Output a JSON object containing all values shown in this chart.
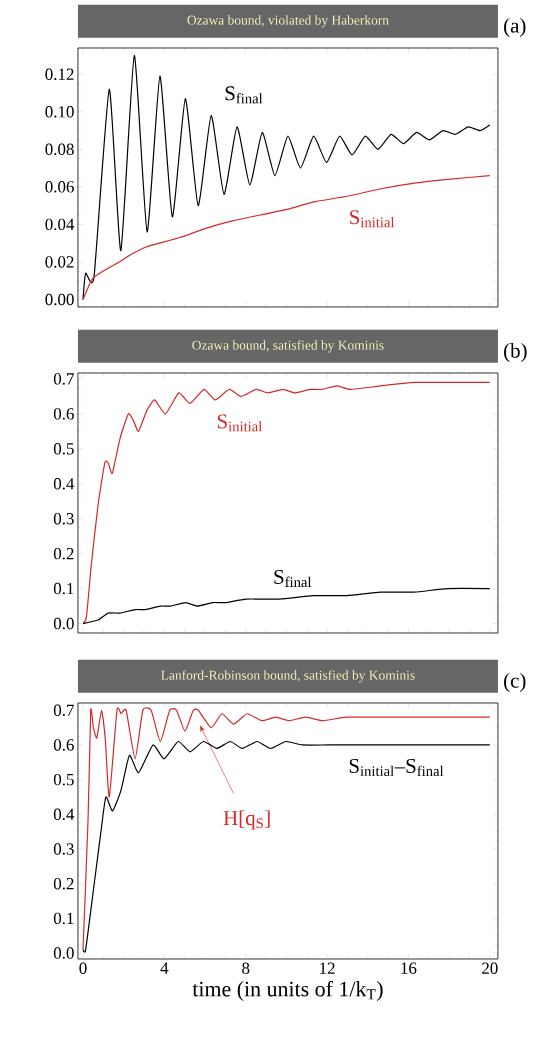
{
  "chart_data": [
    {
      "type": "line",
      "title": "Ozawa bound, violated by Haberkorn",
      "annotations": [
        "(a)"
      ],
      "xlim": [
        -0.25,
        20.4
      ],
      "ylim": [
        -0.004,
        0.134
      ],
      "xticks": [
        0,
        4,
        8,
        12,
        16,
        20
      ],
      "yticks": [
        {
          "value": 0,
          "label": "0.00"
        },
        {
          "value": 0.02,
          "label": "0.02"
        },
        {
          "value": 0.04,
          "label": "0.04"
        },
        {
          "value": 0.06,
          "label": "0.06"
        },
        {
          "value": 0.08,
          "label": "0.08"
        },
        {
          "value": 0.1,
          "label": "0.10"
        },
        {
          "value": 0.12,
          "label": "0.12"
        }
      ],
      "tick_labels": "y",
      "series": [
        {
          "name": "S$_{final}$",
          "color": "#000000",
          "x": [
            0,
            0.13,
            0.54,
            1.29,
            1.86,
            2.52,
            3.15,
            3.78,
            4.39,
            5.03,
            5.66,
            6.3,
            6.93,
            7.57,
            8.2,
            8.81,
            9.43,
            10.07,
            10.69,
            11.34,
            11.97,
            12.61,
            13.23,
            13.88,
            14.5,
            15.15,
            15.76,
            16.4,
            17.03,
            17.69,
            18.31,
            18.94,
            19.52,
            20
          ],
          "values": [
            0,
            0.014,
            0.012,
            0.112,
            0.026,
            0.13,
            0.036,
            0.119,
            0.044,
            0.107,
            0.05,
            0.098,
            0.056,
            0.092,
            0.061,
            0.089,
            0.066,
            0.087,
            0.07,
            0.087,
            0.073,
            0.087,
            0.077,
            0.087,
            0.08,
            0.088,
            0.083,
            0.089,
            0.085,
            0.09,
            0.088,
            0.092,
            0.09,
            0.093
          ]
        },
        {
          "name": "S$_{initial}$",
          "color": "#d42a2a",
          "x": [
            0,
            0.46,
            1.12,
            1.78,
            2.36,
            3.1,
            3.76,
            4.75,
            6.07,
            7.39,
            8.71,
            10.03,
            11.35,
            13.0,
            14.65,
            16.3,
            17.95,
            20
          ],
          "values": [
            0,
            0.011,
            0.016,
            0.02,
            0.024,
            0.028,
            0.03,
            0.033,
            0.038,
            0.042,
            0.045,
            0.048,
            0.052,
            0.055,
            0.059,
            0.062,
            0.064,
            0.066
          ]
        }
      ]
    },
    {
      "type": "line",
      "title": "Ozawa bound, satisfied by Kominis",
      "annotations": [
        "(b)"
      ],
      "xlim": [
        -0.25,
        20.4
      ],
      "ylim": [
        -0.027,
        0.717
      ],
      "xticks": [
        0,
        4,
        8,
        12,
        16,
        20
      ],
      "yticks": [
        {
          "value": 0,
          "label": "0.0"
        },
        0.1,
        0.2,
        0.3,
        0.4,
        0.5,
        0.6,
        0.7
      ],
      "tick_labels": "y",
      "series": [
        {
          "name": "S$_{initial}$",
          "color": "#d42a2a",
          "x": [
            0,
            0.17,
            0.41,
            0.74,
            1.07,
            1.24,
            1.44,
            1.82,
            2.23,
            2.48,
            2.73,
            3.14,
            3.52,
            4.05,
            4.71,
            5.26,
            5.95,
            6.5,
            7.19,
            7.77,
            8.51,
            9.09,
            9.83,
            10.41,
            11.16,
            11.74,
            12.48,
            13.14,
            14.63,
            16.28,
            17.93,
            20
          ],
          "values": [
            0,
            0.02,
            0.17,
            0.34,
            0.46,
            0.46,
            0.43,
            0.53,
            0.6,
            0.58,
            0.55,
            0.61,
            0.64,
            0.6,
            0.66,
            0.63,
            0.67,
            0.64,
            0.67,
            0.65,
            0.67,
            0.66,
            0.67,
            0.66,
            0.67,
            0.67,
            0.68,
            0.67,
            0.68,
            0.69,
            0.69,
            0.69
          ]
        },
        {
          "name": "S$_{final}$",
          "color": "#000000",
          "x": [
            0,
            0.74,
            1.24,
            1.82,
            2.56,
            3.06,
            3.8,
            4.3,
            5.04,
            5.62,
            6.36,
            7.02,
            8.02,
            9.67,
            11.32,
            12.98,
            14.63,
            16.28,
            17.93,
            20
          ],
          "values": [
            0,
            0.01,
            0.03,
            0.03,
            0.04,
            0.04,
            0.05,
            0.05,
            0.06,
            0.05,
            0.06,
            0.06,
            0.07,
            0.07,
            0.08,
            0.08,
            0.09,
            0.09,
            0.1,
            0.1
          ]
        }
      ]
    },
    {
      "type": "line",
      "title": "Lanford-Robinson bound, satisfied by Kominis",
      "annotations": [
        "(c)"
      ],
      "xlabel": "time (in units of 1/k$_{T}$)",
      "xlim": [
        -0.25,
        20.4
      ],
      "ylim": [
        -0.017,
        0.721
      ],
      "xticks": [
        0,
        4,
        8,
        12,
        16,
        20
      ],
      "yticks": [
        {
          "value": 0,
          "label": "0.0"
        },
        0.1,
        0.2,
        0.3,
        0.4,
        0.5,
        0.6,
        0.7
      ],
      "series": [
        {
          "name": "H[q$_{S}$]",
          "color": "#d42a2a",
          "x": [
            0,
            0.25,
            0.38,
            0.51,
            0.68,
            0.91,
            1.09,
            1.29,
            1.67,
            1.87,
            2.12,
            2.56,
            2.94,
            3.35,
            3.8,
            4.26,
            4.6,
            5.01,
            5.42,
            5.67,
            6.3,
            6.83,
            7.4,
            8.07,
            8.78,
            9.47,
            10.13,
            10.96,
            11.79,
            12.94,
            14.6,
            16.25,
            17.9,
            20
          ],
          "values": [
            0.01,
            0.39,
            0.7,
            0.65,
            0.62,
            0.7,
            0.62,
            0.45,
            0.7,
            0.69,
            0.7,
            0.56,
            0.7,
            0.7,
            0.61,
            0.7,
            0.7,
            0.64,
            0.7,
            0.7,
            0.65,
            0.69,
            0.66,
            0.69,
            0.67,
            0.68,
            0.67,
            0.68,
            0.67,
            0.68,
            0.68,
            0.68,
            0.68,
            0.68
          ]
        },
        {
          "name": "S$_{initial}$–S$_{final}$",
          "color": "#000000",
          "x": [
            0,
            0.13,
            0.55,
            0.88,
            1.12,
            1.45,
            1.87,
            2.28,
            2.73,
            3.44,
            3.98,
            4.68,
            5.26,
            5.92,
            6.58,
            7.24,
            7.82,
            8.56,
            9.22,
            9.97,
            10.79,
            12.12,
            14.6,
            20
          ],
          "values": [
            0.01,
            0.01,
            0.2,
            0.35,
            0.45,
            0.41,
            0.47,
            0.57,
            0.52,
            0.6,
            0.56,
            0.61,
            0.58,
            0.61,
            0.59,
            0.61,
            0.59,
            0.61,
            0.59,
            0.61,
            0.6,
            0.6,
            0.6,
            0.6
          ]
        }
      ]
    }
  ]
}
